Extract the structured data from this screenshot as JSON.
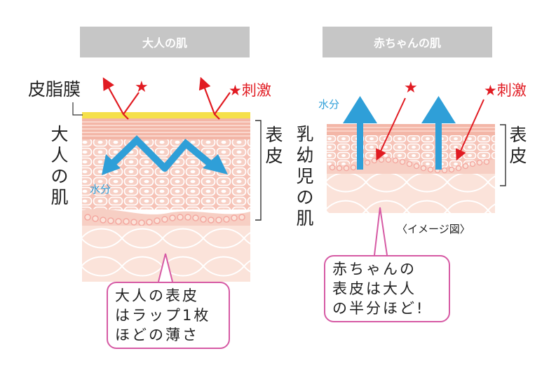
{
  "adult": {
    "header": "大人の肌",
    "sebum_label": "皮脂膜",
    "stimulus_star": "★",
    "stimulus_label": "★刺激",
    "side_label": [
      "大",
      "人",
      "の",
      "肌"
    ],
    "water_label": "水分",
    "epidermis_label": [
      "表",
      "皮"
    ],
    "callout": [
      "大人の表皮",
      "はラップ1枚",
      "ほどの薄さ"
    ]
  },
  "baby": {
    "header": "赤ちゃんの肌",
    "water_label": "水分",
    "stimulus_star": "★",
    "stimulus_label": "★刺激",
    "side_label": [
      "乳",
      "幼",
      "児",
      "の",
      "肌"
    ],
    "epidermis_label": [
      "表",
      "皮"
    ],
    "image_note": "〈イメージ図〉",
    "callout": [
      "赤ちゃんの",
      "表皮は大人",
      "の半分ほど!"
    ]
  },
  "colors": {
    "header_bg": "#c6c6c6",
    "sebum": "#f5e04a",
    "skin_cells": "#f4b3a4",
    "dermis": "#fbe0d6",
    "water_arrow": "#2f9fd8",
    "stimulus_arrow": "#e11b22",
    "callout_border": "#d65aa4"
  }
}
